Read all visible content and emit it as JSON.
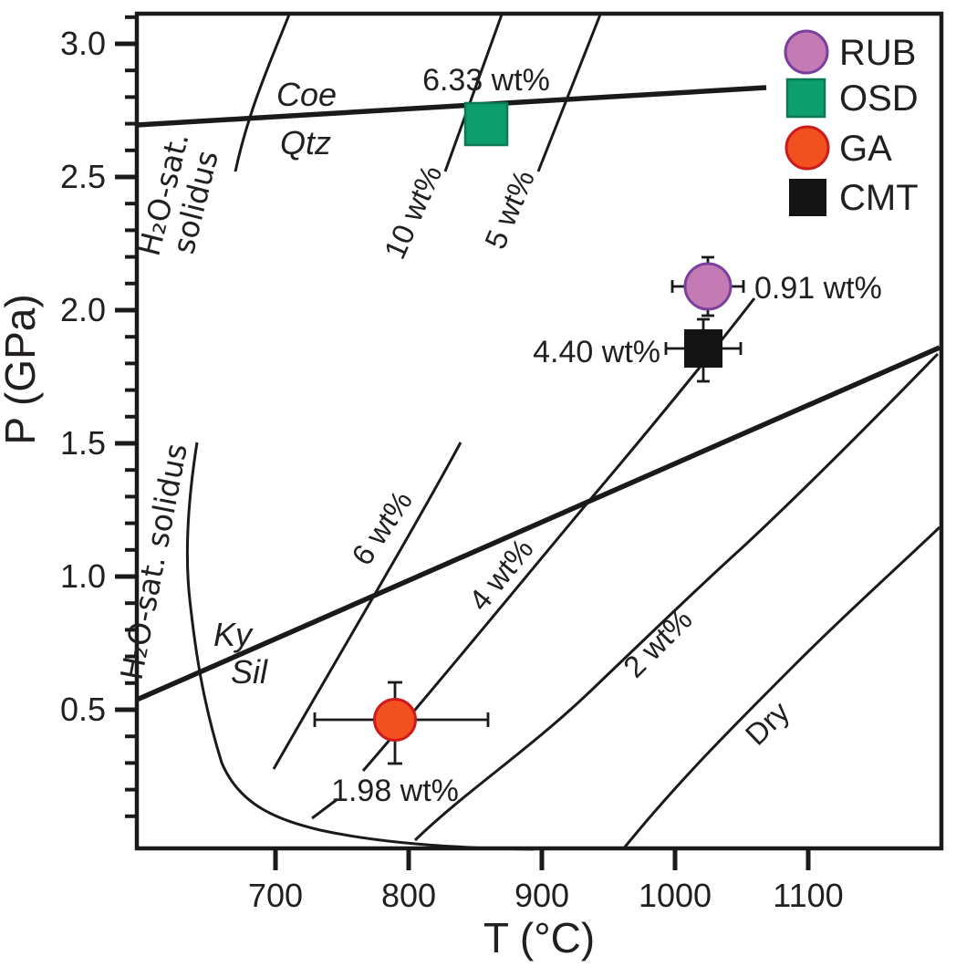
{
  "axes": {
    "x": {
      "title": "T (°C)",
      "ticks": [
        "700",
        "800",
        "900",
        "1000",
        "1100"
      ]
    },
    "y": {
      "title": "P (GPa)",
      "ticks": [
        "3.0",
        "2.5",
        "2.0",
        "1.5",
        "1.0",
        "0.5"
      ]
    }
  },
  "legend": {
    "items": [
      {
        "label": "RUB",
        "marker": "circle"
      },
      {
        "label": "OSD",
        "marker": "square"
      },
      {
        "label": "GA",
        "marker": "circle"
      },
      {
        "label": "CMT",
        "marker": "square"
      }
    ]
  },
  "point_labels": {
    "osd": "6.33 wt%",
    "rub": "0.91 wt%",
    "cmt": "4.40 wt%",
    "ga": "1.98 wt%"
  },
  "isopleth_labels": {
    "w10": "10 wt%",
    "w5": "5 wt%",
    "w6": "6 wt%",
    "w4": "4 wt%",
    "w2": "2 wt%",
    "dry": "Dry"
  },
  "field_labels": {
    "coe": "Coe",
    "qtz": "Qtz",
    "ky": "Ky",
    "sil": "Sil",
    "solidus_upper_line1": "H₂O-sat.",
    "solidus_upper_line2": "solidus",
    "solidus_lower": "H₂O-sat. solidus"
  },
  "colors": {
    "rub_fill": "#c47ab2",
    "rub_stroke": "#7b3fa0",
    "osd_fill": "#0d9e6d",
    "osd_stroke": "#0a7a54",
    "ga_fill": "#f2511f",
    "ga_stroke": "#cd1a1d",
    "cmt_fill": "#141414",
    "line": "#1a1a1a"
  },
  "chart_data": {
    "type": "scatter",
    "xlabel": "T (°C)",
    "ylabel": "P (GPa)",
    "xlim": [
      596,
      1200
    ],
    "ylim": [
      0,
      3.13
    ],
    "x_ticks": [
      700,
      800,
      900,
      1000,
      1100
    ],
    "y_ticks": [
      0.5,
      1.0,
      1.5,
      2.0,
      2.5,
      3.0
    ],
    "grid": false,
    "legend_position": "upper right inside",
    "series": [
      {
        "name": "RUB",
        "marker": "circle",
        "T_C": 1025,
        "P_GPa": 2.1,
        "T_err_C": 27,
        "P_err_GPa": 0.11,
        "H2O_wt_pct": 0.91
      },
      {
        "name": "OSD",
        "marker": "square",
        "T_C": 858,
        "P_GPa": 2.7,
        "H2O_wt_pct": 6.33
      },
      {
        "name": "GA",
        "marker": "circle",
        "T_C": 790,
        "P_GPa": 0.47,
        "T_err_C": 64,
        "P_err_GPa": 0.15,
        "H2O_wt_pct": 1.98
      },
      {
        "name": "CMT",
        "marker": "square",
        "T_C": 1021,
        "P_GPa": 1.86,
        "T_err_C": 27,
        "P_err_GPa": 0.12,
        "H2O_wt_pct": 4.4
      }
    ],
    "reference_lines": [
      {
        "name": "Coe/Qtz boundary",
        "style": "thick",
        "points_T_P": [
          [
            596,
            2.7
          ],
          [
            1068,
            2.84
          ]
        ]
      },
      {
        "name": "Ky/Sil boundary",
        "style": "thick",
        "points_T_P": [
          [
            596,
            0.54
          ],
          [
            1199,
            1.86
          ]
        ]
      },
      {
        "name": "H2O-sat. solidus (upper branch)",
        "style": "thin",
        "points_T_P": [
          [
            710,
            3.11
          ],
          [
            670,
            2.52
          ]
        ]
      },
      {
        "name": "H2O-sat. solidus (lower branch)",
        "style": "thin",
        "points_T_P": [
          [
            641,
            1.5
          ],
          [
            636,
            0.91
          ],
          [
            660,
            0.3
          ],
          [
            734,
            0.05
          ],
          [
            894,
            0.0
          ]
        ]
      },
      {
        "name": "10 wt% isopleth",
        "style": "thin",
        "points_T_P": [
          [
            870,
            3.11
          ],
          [
            827,
            2.52
          ]
        ]
      },
      {
        "name": "5 wt% isopleth",
        "style": "thin",
        "points_T_P": [
          [
            944,
            3.11
          ],
          [
            897,
            2.52
          ]
        ]
      },
      {
        "name": "6 wt% isopleth",
        "style": "thin",
        "points_T_P": [
          [
            839,
            1.5
          ],
          [
            699,
            0.28
          ]
        ]
      },
      {
        "name": "4 wt% isopleth",
        "style": "thin",
        "points_T_P": [
          [
            1060,
            2.04
          ],
          [
            766,
            0.27
          ],
          [
            727,
            0.09
          ]
        ]
      },
      {
        "name": "2 wt% isopleth",
        "style": "thin",
        "points_T_P": [
          [
            1197,
            1.84
          ],
          [
            805,
            0.01
          ]
        ]
      },
      {
        "name": "Dry solidus",
        "style": "thin",
        "points_T_P": [
          [
            961,
            0.0
          ],
          [
            1199,
            1.18
          ]
        ]
      }
    ]
  }
}
